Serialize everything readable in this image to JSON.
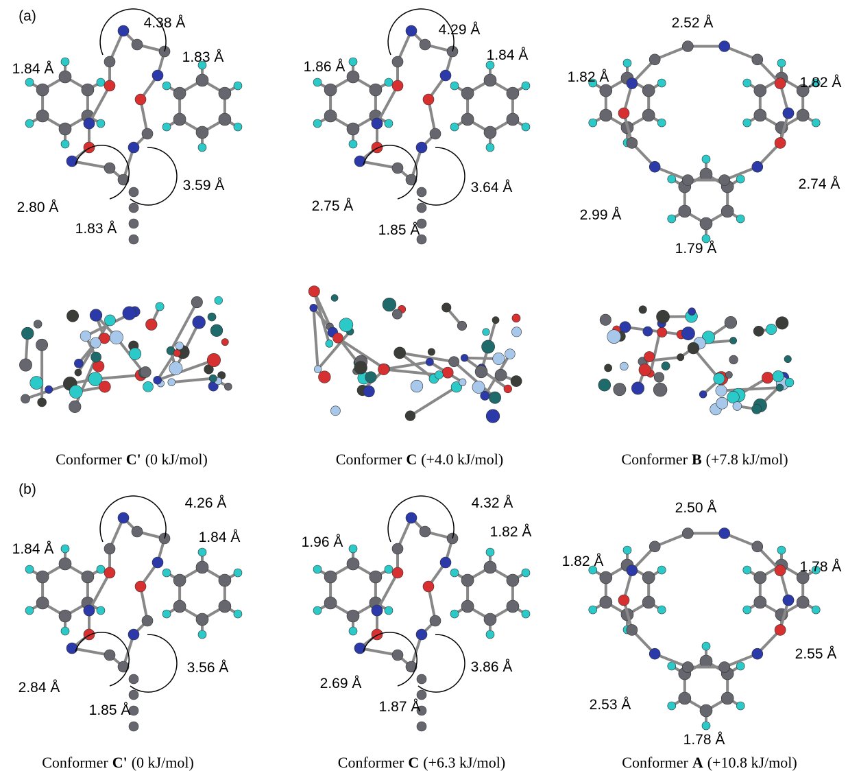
{
  "panels": [
    {
      "label": "(a)",
      "conformers": [
        {
          "distances": [
            "4.38 Å",
            "1.84 Å",
            "1.83 Å",
            "2.80 Å",
            "3.59 Å",
            "1.83 Å"
          ],
          "caption": {
            "prefix": "Conformer",
            "name": "C'",
            "energy": "(0 kJ/mol)"
          }
        },
        {
          "distances": [
            "4.29 Å",
            "1.86 Å",
            "1.84 Å",
            "2.75 Å",
            "3.64 Å",
            "1.85 Å"
          ],
          "caption": {
            "prefix": "Conformer",
            "name": "C",
            "energy": "(+4.0 kJ/mol)"
          }
        },
        {
          "distances": [
            "2.52 Å",
            "1.82 Å",
            "1.82 Å",
            "2.74 Å",
            "2.99 Å",
            "1.79 Å"
          ],
          "caption": {
            "prefix": "Conformer",
            "name": "B",
            "energy": "(+7.8 kJ/mol)"
          }
        }
      ]
    },
    {
      "label": "(b)",
      "conformers": [
        {
          "distances": [
            "4.26 Å",
            "1.84 Å",
            "1.84 Å",
            "2.84 Å",
            "3.56 Å",
            "1.85 Å"
          ],
          "caption": {
            "prefix": "Conformer",
            "name": "C'",
            "energy": "(0 kJ/mol)"
          }
        },
        {
          "distances": [
            "4.32 Å",
            "1.96 Å",
            "1.82 Å",
            "2.69 Å",
            "3.86 Å",
            "1.87 Å"
          ],
          "caption": {
            "prefix": "Conformer",
            "name": "C",
            "energy": "(+6.3 kJ/mol)"
          }
        },
        {
          "distances": [
            "2.50 Å",
            "1.82 Å",
            "1.78 Å",
            "2.55 Å",
            "2.53 Å",
            "1.78 Å"
          ],
          "caption": {
            "prefix": "Conformer",
            "name": "A",
            "energy": "(+10.8 kJ/mol)"
          }
        }
      ]
    }
  ]
}
